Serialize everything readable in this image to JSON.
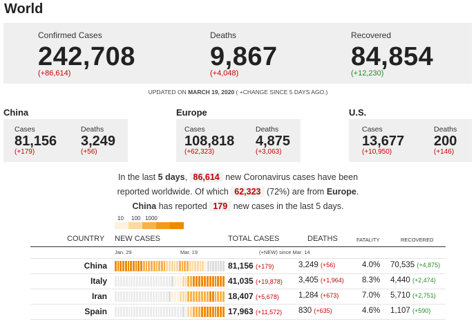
{
  "world": {
    "title": "World",
    "confirmed": {
      "label": "Confirmed Cases",
      "value": "242,708",
      "change": "(+86,614)"
    },
    "deaths": {
      "label": "Deaths",
      "value": "9,867",
      "change": "(+4,048)"
    },
    "recovered": {
      "label": "Recovered",
      "value": "84,854",
      "change": "(+12,230)"
    }
  },
  "updated": {
    "prefix": "UPDATED ON ",
    "date": "MARCH 19, 2020",
    "suffix": " ( +CHANGE SINCE 5 DAYS AGO.)"
  },
  "regions": [
    {
      "name": "China",
      "cases_label": "Cases",
      "cases": "81,156",
      "cases_chg": "(+179)",
      "deaths_label": "Deaths",
      "deaths": "3,249",
      "deaths_chg": "(+56)"
    },
    {
      "name": "Europe",
      "cases_label": "Cases",
      "cases": "108,818",
      "cases_chg": "(+62,323)",
      "deaths_label": "Deaths",
      "deaths": "4,875",
      "deaths_chg": "(+3,063)"
    },
    {
      "name": "U.S.",
      "cases_label": "Cases",
      "cases": "13,677",
      "cases_chg": "(+10,950)",
      "deaths_label": "Deaths",
      "deaths": "200",
      "deaths_chg": "(+146)"
    }
  ],
  "summary": {
    "l1a": "In the last ",
    "l1b": "5 days",
    "l1c": ",",
    "n1": "86,614",
    "l1d": " new Coronavirus cases have been",
    "l2a": "reported worldwide. Of which ",
    "n2": "62,323",
    "l2b": " (72%) are from ",
    "l2c": "Europe",
    "l2d": ".",
    "l3a": "China",
    "l3b": " has reported ",
    "n3": "179",
    "l3c": " new cases in the last 5 days."
  },
  "legend": {
    "t1": "10",
    "t2": "100",
    "t3": "1000",
    "colors": [
      "#fdf1de",
      "#fbd9a3",
      "#f8b24a",
      "#f39a18",
      "#ef8a00"
    ]
  },
  "table": {
    "headers": {
      "country": "COUNTRY",
      "new_cases": "NEW CASES",
      "total": "TOTAL CASES",
      "deaths": "DEATHS",
      "fatality": "FATALITY",
      "recovered": "RECOVERED"
    },
    "sub": {
      "jan": "Jan. 29",
      "mar": "Mar. 19",
      "new": "(+NEW) since Mar. 14"
    },
    "rows": [
      {
        "country": "China",
        "total": "81,156",
        "total_chg": "(+179)",
        "deaths": "3,249",
        "deaths_chg": "(+56)",
        "fatality": "4.0%",
        "recovered": "70,535",
        "recovered_chg": "(+4,875)"
      },
      {
        "country": "Italy",
        "total": "41,035",
        "total_chg": "(+19,878)",
        "deaths": "3,405",
        "deaths_chg": "(+1,964)",
        "fatality": "8.3%",
        "recovered": "4,440",
        "recovered_chg": "(+2,474)"
      },
      {
        "country": "Iran",
        "total": "18,407",
        "total_chg": "(+5,678)",
        "deaths": "1,284",
        "deaths_chg": "(+673)",
        "fatality": "7.0%",
        "recovered": "5,710",
        "recovered_chg": "(+2,751)"
      },
      {
        "country": "Spain",
        "total": "17,963",
        "total_chg": "(+11,572)",
        "deaths": "830",
        "deaths_chg": "(+635)",
        "fatality": "4.6%",
        "recovered": "1,107",
        "recovered_chg": "(+590)"
      }
    ]
  }
}
